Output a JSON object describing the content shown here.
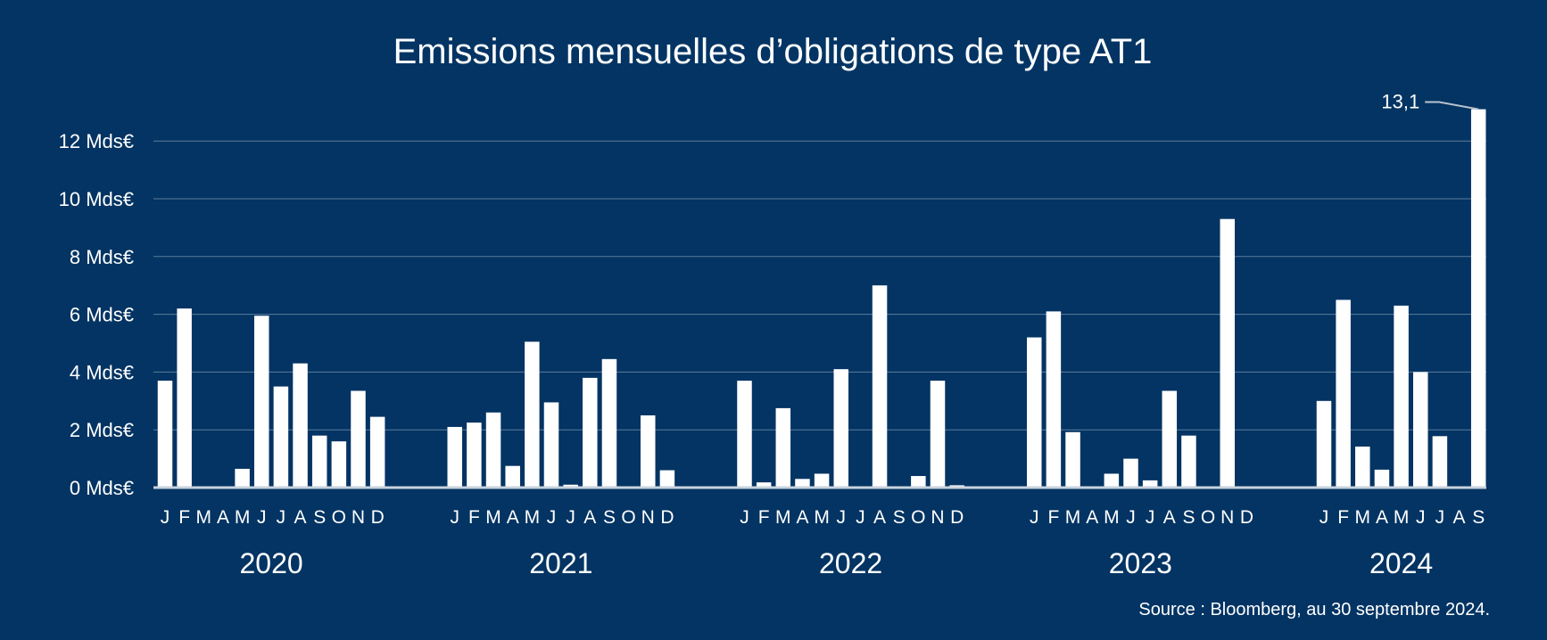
{
  "chart_data": {
    "type": "bar",
    "title": "Emissions mensuelles d’obligations de type AT1",
    "source": "Source : Bloomberg, au 30 septembre 2024.",
    "y_ticks": [
      "0 Mds€",
      "2 Mds€",
      "4 Mds€",
      "6 Mds€",
      "8 Mds€",
      "10 Mds€",
      "12 Mds€"
    ],
    "y_tick_values": [
      0,
      2,
      4,
      6,
      8,
      10,
      12
    ],
    "ylim": [
      0,
      13.5
    ],
    "grid": true,
    "legend": "none",
    "bar_color": "#ffffff",
    "groups": [
      {
        "year": "2020",
        "months": [
          "J",
          "F",
          "M",
          "A",
          "M",
          "J",
          "J",
          "A",
          "S",
          "O",
          "N",
          "D"
        ],
        "values": [
          3.7,
          6.2,
          0,
          0,
          0.65,
          5.95,
          3.5,
          4.3,
          1.8,
          1.6,
          3.35,
          2.45
        ]
      },
      {
        "year": "2021",
        "months": [
          "J",
          "F",
          "M",
          "A",
          "M",
          "J",
          "J",
          "A",
          "S",
          "O",
          "N",
          "D"
        ],
        "values": [
          2.1,
          2.25,
          2.6,
          0.75,
          5.05,
          2.95,
          0.1,
          3.8,
          4.45,
          0,
          2.5,
          0.6
        ]
      },
      {
        "year": "2022",
        "months": [
          "J",
          "F",
          "M",
          "A",
          "M",
          "J",
          "J",
          "A",
          "S",
          "O",
          "N",
          "D"
        ],
        "values": [
          3.7,
          0.18,
          2.75,
          0.3,
          0.48,
          4.1,
          0,
          7.0,
          0,
          0.4,
          3.7,
          0.08
        ]
      },
      {
        "year": "2023",
        "months": [
          "J",
          "F",
          "M",
          "A",
          "M",
          "J",
          "J",
          "A",
          "S",
          "O",
          "N",
          "D"
        ],
        "values": [
          5.2,
          6.1,
          1.92,
          0,
          0.48,
          1.0,
          0.25,
          3.35,
          1.8,
          0,
          9.3,
          0
        ]
      },
      {
        "year": "2024",
        "months": [
          "J",
          "F",
          "M",
          "A",
          "M",
          "J",
          "J",
          "A",
          "S"
        ],
        "values": [
          3.0,
          6.5,
          1.42,
          0.62,
          6.3,
          4.0,
          1.78,
          0,
          13.1
        ]
      }
    ],
    "annotations": [
      {
        "text": "13,1",
        "group": 4,
        "index": 8
      }
    ]
  }
}
